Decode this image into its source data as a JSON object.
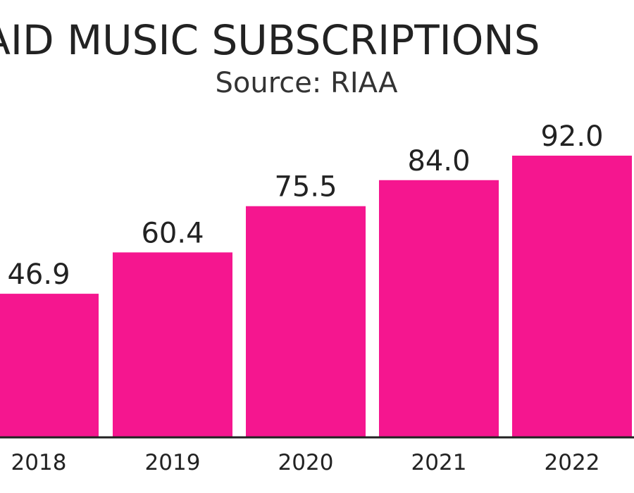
{
  "colors": {
    "bar": "#f5168f",
    "axis": "#222222",
    "text": "#222222"
  },
  "chart_data": {
    "type": "bar",
    "title": "U.S. PAID MUSIC SUBSCRIPTIONS",
    "subtitle": "Source: RIAA",
    "categories": [
      "2018",
      "2019",
      "2020",
      "2021",
      "2022"
    ],
    "values": [
      46.9,
      60.4,
      75.5,
      84.0,
      92.0
    ],
    "value_labels": [
      "46.9",
      "60.4",
      "75.5",
      "84.0",
      "92.0"
    ],
    "xlabel": "",
    "ylabel": "",
    "ylim": [
      0,
      92.0
    ],
    "grid": false,
    "legend": "none"
  }
}
